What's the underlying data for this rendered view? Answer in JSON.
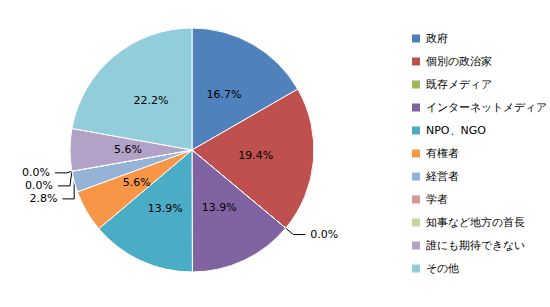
{
  "chart_data": {
    "type": "pie",
    "categories": [
      "政府",
      "個別の政治家",
      "既存メディア",
      "インターネットメディア",
      "NPO、NGO",
      "有権者",
      "経営者",
      "学者",
      "知事など地方の首長",
      "誰にも期待できない",
      "その他"
    ],
    "values": [
      16.7,
      19.4,
      0.0,
      13.9,
      13.9,
      5.6,
      2.8,
      0.0,
      0.0,
      5.6,
      22.2
    ],
    "value_labels": [
      "16.7%",
      "19.4%",
      "0.0%",
      "13.9%",
      "13.9%",
      "5.6%",
      "2.8%",
      "0.0%",
      "0.0%",
      "5.6%",
      "22.2%"
    ],
    "colors": [
      "#4F81BD",
      "#C0504D",
      "#9BBB59",
      "#8064A2",
      "#4BACC6",
      "#F79646",
      "#95B3D7",
      "#DA9694",
      "#C3D69B",
      "#B3A2C7",
      "#92CDDC"
    ],
    "data_labels": true,
    "legend": "right"
  }
}
